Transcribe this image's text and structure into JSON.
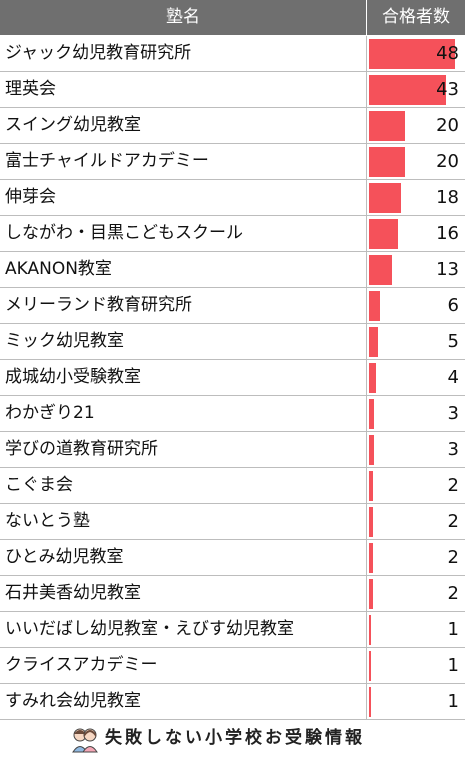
{
  "chart_data": {
    "type": "bar",
    "columns": [
      "塾名",
      "合格者数"
    ],
    "categories": [
      "ジャック幼児教育研究所",
      "理英会",
      "スイング幼児教室",
      "富士チャイルドアカデミー",
      "伸芽会",
      "しながわ・目黒こどもスクール",
      "AKANON教室",
      "メリーランド教育研究所",
      "ミック幼児教室",
      "成城幼小受験教室",
      "わかぎり21",
      "学びの道教育研究所",
      "こぐま会",
      "ないとう塾",
      "ひとみ幼児教室",
      "石井美香幼児教室",
      "いいだばし幼児教室・えびす幼児教室",
      "クライスアカデミー",
      "すみれ会幼児教室"
    ],
    "values": [
      48,
      43,
      20,
      20,
      18,
      16,
      13,
      6,
      5,
      4,
      3,
      3,
      2,
      2,
      2,
      2,
      1,
      1,
      1
    ],
    "xlim": [
      0,
      50
    ],
    "bar_color": "#f5515a",
    "header_color": "#6f6f6f"
  },
  "footer": {
    "text": "失敗しない小学校お受験情報",
    "logo_icon": "children-logo-icon"
  }
}
